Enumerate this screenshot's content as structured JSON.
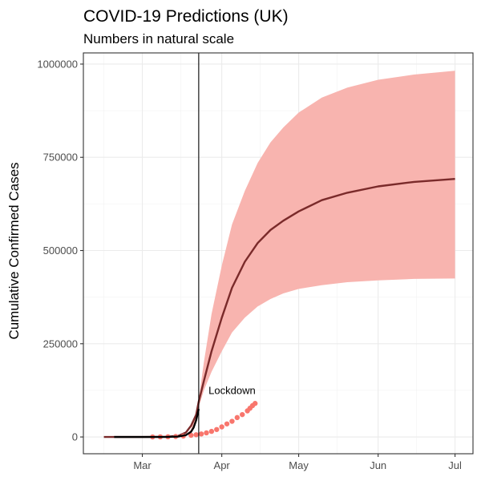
{
  "chart_data": {
    "type": "line",
    "title": "COVID-19 Predictions (UK)",
    "subtitle": "Numbers in natural scale",
    "xlabel": "",
    "ylabel": "Cumulative Confirmed Cases",
    "x_ticks": [
      "Mar",
      "Apr",
      "May",
      "Jun",
      "Jul"
    ],
    "x_tick_dates": [
      "2020-03-01",
      "2020-04-01",
      "2020-05-01",
      "2020-06-01",
      "2020-07-01"
    ],
    "xlim": [
      "2020-02-15",
      "2020-07-01"
    ],
    "y_ticks": [
      0,
      250000,
      500000,
      750000,
      1000000
    ],
    "y_tick_labels": [
      "0",
      "250000",
      "500000",
      "750000",
      "1000000"
    ],
    "ylim": [
      -45000,
      1030000
    ],
    "grid": true,
    "series": [
      {
        "kind": "band",
        "color": "#f8b4af",
        "x": [
          "2020-02-15",
          "2020-03-01",
          "2020-03-10",
          "2020-03-15",
          "2020-03-18",
          "2020-03-20",
          "2020-03-22",
          "2020-03-23",
          "2020-03-25",
          "2020-03-28",
          "2020-04-01",
          "2020-04-05",
          "2020-04-10",
          "2020-04-15",
          "2020-04-20",
          "2020-04-25",
          "2020-05-01",
          "2020-05-10",
          "2020-05-20",
          "2020-06-01",
          "2020-06-15",
          "2020-07-01"
        ],
        "lower": [
          0,
          0,
          0,
          200,
          3000,
          12000,
          40000,
          80000,
          125000,
          175000,
          230000,
          280000,
          320000,
          350000,
          370000,
          385000,
          397000,
          407000,
          415000,
          420000,
          424000,
          425000
        ],
        "upper": [
          0,
          0,
          0,
          400,
          5000,
          20000,
          70000,
          100000,
          200000,
          330000,
          460000,
          570000,
          660000,
          735000,
          790000,
          830000,
          870000,
          910000,
          937000,
          958000,
          972000,
          982000
        ]
      },
      {
        "kind": "line",
        "color": "#7a2a2a",
        "x": [
          "2020-02-15",
          "2020-03-01",
          "2020-03-10",
          "2020-03-15",
          "2020-03-18",
          "2020-03-20",
          "2020-03-22",
          "2020-03-23",
          "2020-03-25",
          "2020-03-28",
          "2020-04-01",
          "2020-04-05",
          "2020-04-10",
          "2020-04-15",
          "2020-04-20",
          "2020-04-25",
          "2020-05-01",
          "2020-05-10",
          "2020-05-20",
          "2020-06-01",
          "2020-06-15",
          "2020-07-01"
        ],
        "y": [
          0,
          0,
          500,
          3000,
          12000,
          30000,
          60000,
          95000,
          150000,
          230000,
          320000,
          400000,
          470000,
          520000,
          555000,
          580000,
          605000,
          635000,
          655000,
          672000,
          684000,
          692000
        ]
      },
      {
        "kind": "points",
        "color": "#f8766d",
        "x": [
          "2020-03-05",
          "2020-03-08",
          "2020-03-11",
          "2020-03-14",
          "2020-03-17",
          "2020-03-20",
          "2020-03-22",
          "2020-03-24",
          "2020-03-26",
          "2020-03-28",
          "2020-03-30",
          "2020-04-01",
          "2020-04-03",
          "2020-04-05",
          "2020-04-07",
          "2020-04-09",
          "2020-04-11",
          "2020-04-12",
          "2020-04-13",
          "2020-04-14"
        ],
        "y": [
          100,
          300,
          500,
          1200,
          2500,
          4500,
          6000,
          8000,
          11000,
          15000,
          20000,
          27000,
          35000,
          42000,
          52000,
          60000,
          70000,
          77000,
          84000,
          90000
        ]
      },
      {
        "kind": "line",
        "color": "#000000",
        "x": [
          "2020-02-19",
          "2020-03-01",
          "2020-03-10",
          "2020-03-15",
          "2020-03-18",
          "2020-03-20",
          "2020-03-21",
          "2020-03-22",
          "2020-03-23"
        ],
        "y": [
          0,
          0,
          0,
          1000,
          5000,
          14000,
          25000,
          45000,
          75000
        ]
      }
    ],
    "annotations": [
      {
        "kind": "vline",
        "x": "2020-03-23",
        "color": "#000000"
      },
      {
        "kind": "text",
        "x": "2020-04-05",
        "y": 115000,
        "label": "Lockdown"
      }
    ]
  }
}
